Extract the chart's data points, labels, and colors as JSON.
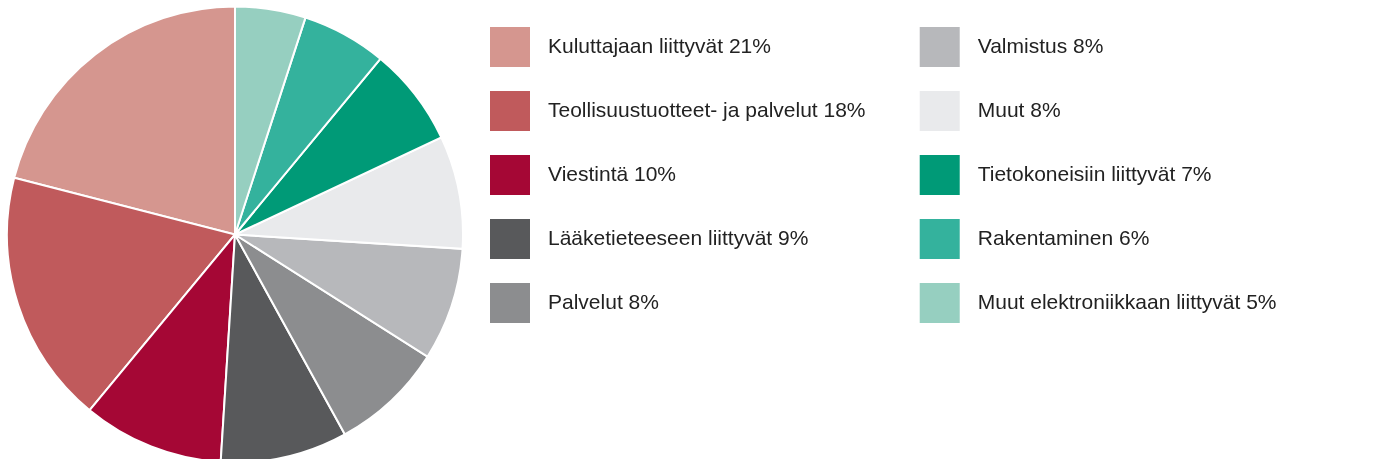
{
  "chart_data": {
    "type": "pie",
    "categories": [
      "Kuluttajaan liittyvät 21%",
      "Teollisuustuotteet- ja palvelut 18%",
      "Viestintä 10%",
      "Lääketieteeseen liittyvät 9%",
      "Palvelut 8%",
      "Valmistus 8%",
      "Muut 8%",
      "Tietokoneisiin liittyvät 7%",
      "Rakentaminen 6%",
      "Muut elektroniikkaan liittyvät 5%"
    ],
    "values": [
      21,
      18,
      10,
      9,
      8,
      8,
      8,
      7,
      6,
      5
    ],
    "colors": [
      "#d5968f",
      "#c05a5c",
      "#a50735",
      "#58595b",
      "#8c8d8f",
      "#b7b8bb",
      "#e9eaec",
      "#009a77",
      "#34b29d",
      "#96cfc0"
    ],
    "legend": "right"
  }
}
